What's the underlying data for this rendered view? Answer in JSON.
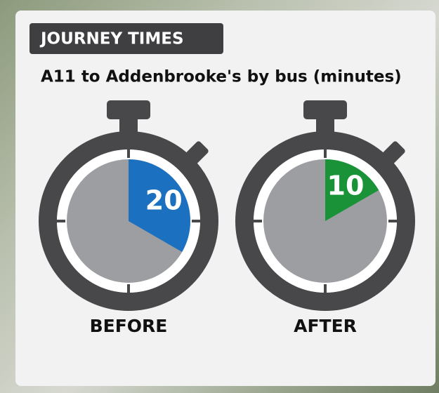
{
  "chart_data": {
    "type": "stopwatch",
    "badge": "JOURNEY TIMES",
    "title": "A11 to Addenbrooke's by bus (minutes)",
    "categories": [
      "BEFORE",
      "AFTER"
    ],
    "values": [
      20,
      10
    ],
    "colors": [
      "#1b70bf",
      "#1a9338"
    ],
    "ylim": [
      0,
      60
    ]
  }
}
